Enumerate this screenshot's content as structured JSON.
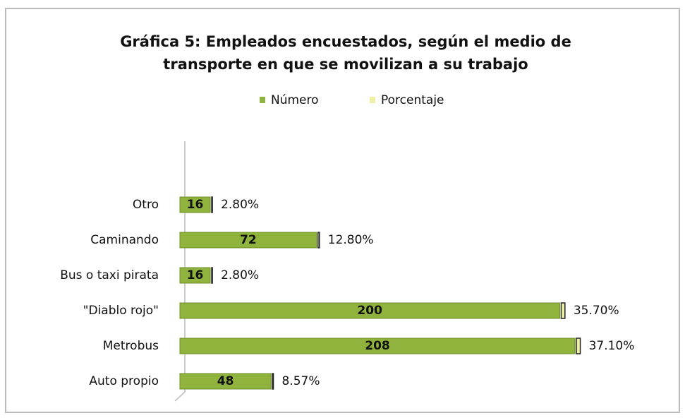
{
  "chart_data": {
    "type": "bar",
    "orientation": "horizontal",
    "stacked": true,
    "title": [
      "Gráfica 5: Empleados encuestados, según el medio de",
      "transporte en que se movilizan a su trabajo"
    ],
    "categories": [
      "Otro",
      "Caminando",
      "Bus o taxi pirata",
      "\"Diablo rojo\"",
      "Metrobus",
      "Auto propio"
    ],
    "series": [
      {
        "name": "Número",
        "color": "#8fb33c",
        "values": [
          16,
          72,
          16,
          200,
          208,
          48
        ]
      },
      {
        "name": "Porcentaje",
        "color": "#eef0a8",
        "values": [
          2.8,
          12.8,
          2.8,
          35.7,
          37.1,
          8.57
        ],
        "value_labels": [
          "2.80%",
          "12.80%",
          "2.80%",
          "35.70%",
          "37.10%",
          "8.57%"
        ]
      }
    ],
    "legend": "top"
  }
}
